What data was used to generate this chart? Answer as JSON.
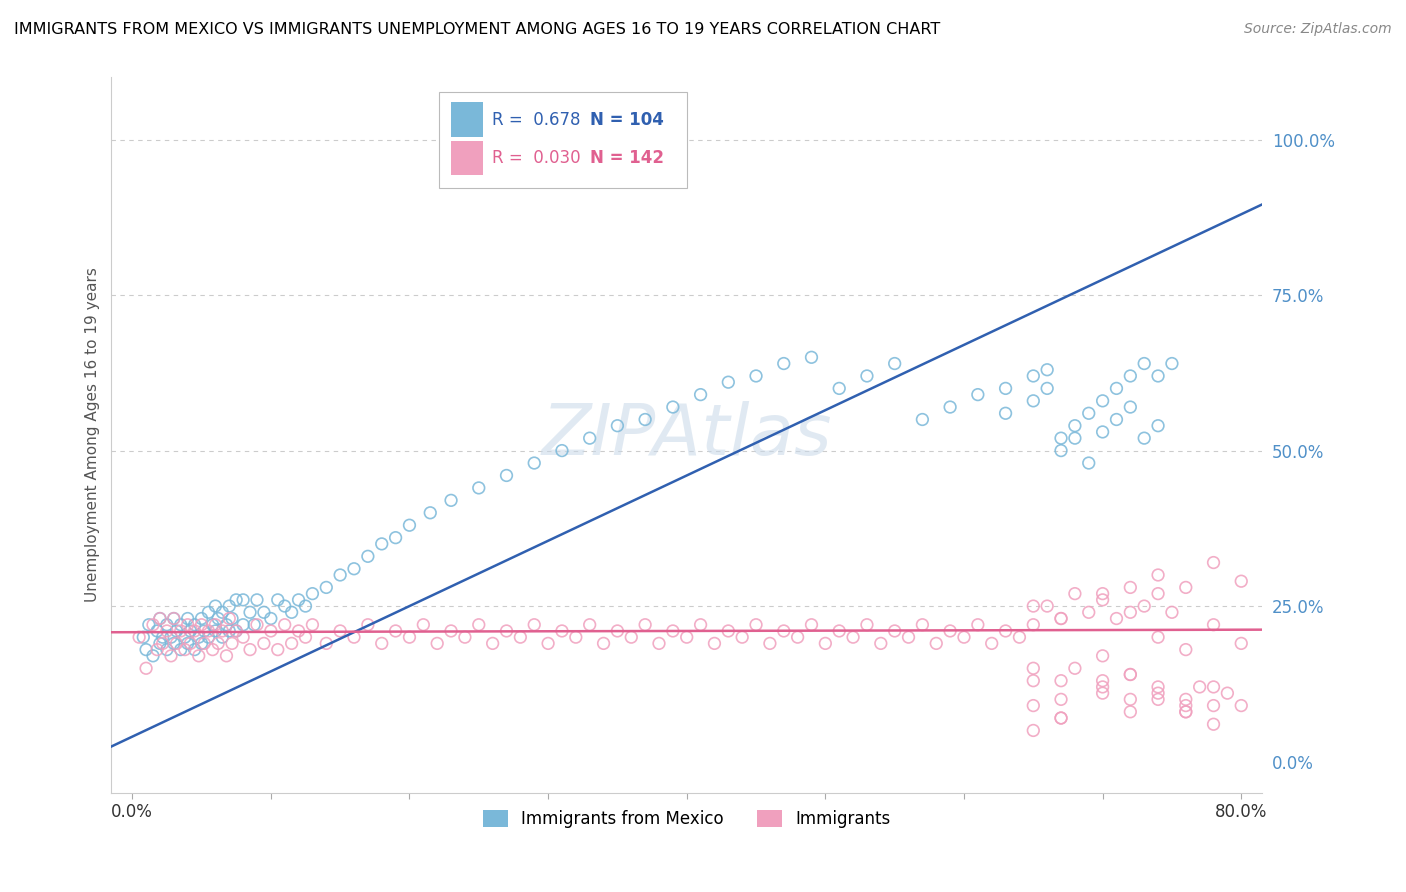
{
  "title": "IMMIGRANTS FROM MEXICO VS IMMIGRANTS UNEMPLOYMENT AMONG AGES 16 TO 19 YEARS CORRELATION CHART",
  "source": "Source: ZipAtlas.com",
  "ylabel": "Unemployment Among Ages 16 to 19 years",
  "blue_label": "Immigrants from Mexico",
  "pink_label": "Immigrants",
  "blue_R": 0.678,
  "blue_N": 104,
  "pink_R": 0.03,
  "pink_N": 142,
  "blue_color": "#7ab8d9",
  "pink_color": "#f0a0be",
  "blue_line_color": "#3060b0",
  "pink_line_color": "#e06090",
  "blue_tick_color": "#5090c8",
  "axis_label_color": "#555555",
  "background_color": "#ffffff",
  "grid_color": "#cccccc",
  "blue_scatter_x": [
    0.008,
    0.01,
    0.012,
    0.015,
    0.018,
    0.02,
    0.02,
    0.022,
    0.025,
    0.025,
    0.028,
    0.03,
    0.03,
    0.032,
    0.035,
    0.035,
    0.038,
    0.04,
    0.04,
    0.042,
    0.045,
    0.045,
    0.048,
    0.05,
    0.05,
    0.052,
    0.055,
    0.055,
    0.058,
    0.06,
    0.06,
    0.062,
    0.065,
    0.065,
    0.068,
    0.07,
    0.07,
    0.072,
    0.075,
    0.075,
    0.08,
    0.08,
    0.085,
    0.088,
    0.09,
    0.095,
    0.1,
    0.105,
    0.11,
    0.115,
    0.12,
    0.125,
    0.13,
    0.14,
    0.15,
    0.16,
    0.17,
    0.18,
    0.19,
    0.2,
    0.215,
    0.23,
    0.25,
    0.27,
    0.29,
    0.31,
    0.33,
    0.35,
    0.37,
    0.39,
    0.41,
    0.43,
    0.45,
    0.47,
    0.49,
    0.51,
    0.53,
    0.55,
    0.57,
    0.59,
    0.61,
    0.63,
    0.65,
    0.66,
    0.67,
    0.68,
    0.69,
    0.7,
    0.71,
    0.72,
    0.73,
    0.74,
    0.63,
    0.65,
    0.66,
    0.67,
    0.68,
    0.69,
    0.7,
    0.71,
    0.72,
    0.73,
    0.74,
    0.75
  ],
  "blue_scatter_y": [
    0.2,
    0.18,
    0.22,
    0.17,
    0.21,
    0.19,
    0.23,
    0.2,
    0.18,
    0.22,
    0.2,
    0.19,
    0.23,
    0.21,
    0.18,
    0.22,
    0.2,
    0.19,
    0.23,
    0.21,
    0.18,
    0.22,
    0.2,
    0.19,
    0.23,
    0.21,
    0.2,
    0.24,
    0.22,
    0.21,
    0.25,
    0.23,
    0.2,
    0.24,
    0.22,
    0.21,
    0.25,
    0.23,
    0.21,
    0.26,
    0.22,
    0.26,
    0.24,
    0.22,
    0.26,
    0.24,
    0.23,
    0.26,
    0.25,
    0.24,
    0.26,
    0.25,
    0.27,
    0.28,
    0.3,
    0.31,
    0.33,
    0.35,
    0.36,
    0.38,
    0.4,
    0.42,
    0.44,
    0.46,
    0.48,
    0.5,
    0.52,
    0.54,
    0.55,
    0.57,
    0.59,
    0.61,
    0.62,
    0.64,
    0.65,
    0.6,
    0.62,
    0.64,
    0.55,
    0.57,
    0.59,
    0.6,
    0.62,
    0.63,
    0.5,
    0.52,
    0.48,
    0.53,
    0.55,
    0.57,
    0.52,
    0.54,
    0.56,
    0.58,
    0.6,
    0.52,
    0.54,
    0.56,
    0.58,
    0.6,
    0.62,
    0.64,
    0.62,
    0.64
  ],
  "pink_scatter_x": [
    0.005,
    0.01,
    0.015,
    0.018,
    0.02,
    0.022,
    0.025,
    0.028,
    0.03,
    0.032,
    0.035,
    0.038,
    0.04,
    0.042,
    0.045,
    0.048,
    0.05,
    0.052,
    0.055,
    0.058,
    0.06,
    0.062,
    0.065,
    0.068,
    0.07,
    0.072,
    0.075,
    0.08,
    0.085,
    0.09,
    0.095,
    0.1,
    0.105,
    0.11,
    0.115,
    0.12,
    0.125,
    0.13,
    0.14,
    0.15,
    0.16,
    0.17,
    0.18,
    0.19,
    0.2,
    0.21,
    0.22,
    0.23,
    0.24,
    0.25,
    0.26,
    0.27,
    0.28,
    0.29,
    0.3,
    0.31,
    0.32,
    0.33,
    0.34,
    0.35,
    0.36,
    0.37,
    0.38,
    0.39,
    0.4,
    0.41,
    0.42,
    0.43,
    0.44,
    0.45,
    0.46,
    0.47,
    0.48,
    0.49,
    0.5,
    0.51,
    0.52,
    0.53,
    0.54,
    0.55,
    0.56,
    0.57,
    0.58,
    0.59,
    0.6,
    0.61,
    0.62,
    0.63,
    0.64,
    0.65,
    0.66,
    0.67,
    0.68,
    0.69,
    0.7,
    0.71,
    0.72,
    0.73,
    0.74,
    0.75,
    0.76,
    0.77,
    0.78,
    0.79,
    0.65,
    0.67,
    0.7,
    0.72,
    0.74,
    0.76,
    0.68,
    0.7,
    0.72,
    0.74,
    0.76,
    0.78,
    0.65,
    0.67,
    0.7,
    0.72,
    0.74,
    0.76,
    0.78,
    0.8,
    0.65,
    0.67,
    0.7,
    0.72,
    0.74,
    0.76,
    0.78,
    0.8,
    0.65,
    0.67,
    0.7,
    0.72,
    0.74,
    0.76,
    0.78,
    0.8,
    0.65,
    0.67
  ],
  "pink_scatter_y": [
    0.2,
    0.15,
    0.22,
    0.18,
    0.23,
    0.19,
    0.21,
    0.17,
    0.23,
    0.19,
    0.21,
    0.18,
    0.22,
    0.19,
    0.21,
    0.17,
    0.22,
    0.19,
    0.21,
    0.18,
    0.22,
    0.19,
    0.21,
    0.17,
    0.23,
    0.19,
    0.21,
    0.2,
    0.18,
    0.22,
    0.19,
    0.21,
    0.18,
    0.22,
    0.19,
    0.21,
    0.2,
    0.22,
    0.19,
    0.21,
    0.2,
    0.22,
    0.19,
    0.21,
    0.2,
    0.22,
    0.19,
    0.21,
    0.2,
    0.22,
    0.19,
    0.21,
    0.2,
    0.22,
    0.19,
    0.21,
    0.2,
    0.22,
    0.19,
    0.21,
    0.2,
    0.22,
    0.19,
    0.21,
    0.2,
    0.22,
    0.19,
    0.21,
    0.2,
    0.22,
    0.19,
    0.21,
    0.2,
    0.22,
    0.19,
    0.21,
    0.2,
    0.22,
    0.19,
    0.21,
    0.2,
    0.22,
    0.19,
    0.21,
    0.2,
    0.22,
    0.19,
    0.21,
    0.2,
    0.22,
    0.25,
    0.23,
    0.27,
    0.24,
    0.26,
    0.23,
    0.28,
    0.25,
    0.27,
    0.24,
    0.1,
    0.12,
    0.09,
    0.11,
    0.13,
    0.1,
    0.12,
    0.14,
    0.11,
    0.09,
    0.15,
    0.13,
    0.1,
    0.12,
    0.08,
    0.06,
    0.09,
    0.07,
    0.11,
    0.08,
    0.3,
    0.28,
    0.32,
    0.29,
    0.15,
    0.13,
    0.17,
    0.14,
    0.1,
    0.08,
    0.12,
    0.09,
    0.25,
    0.23,
    0.27,
    0.24,
    0.2,
    0.18,
    0.22,
    0.19,
    0.05,
    0.07
  ]
}
